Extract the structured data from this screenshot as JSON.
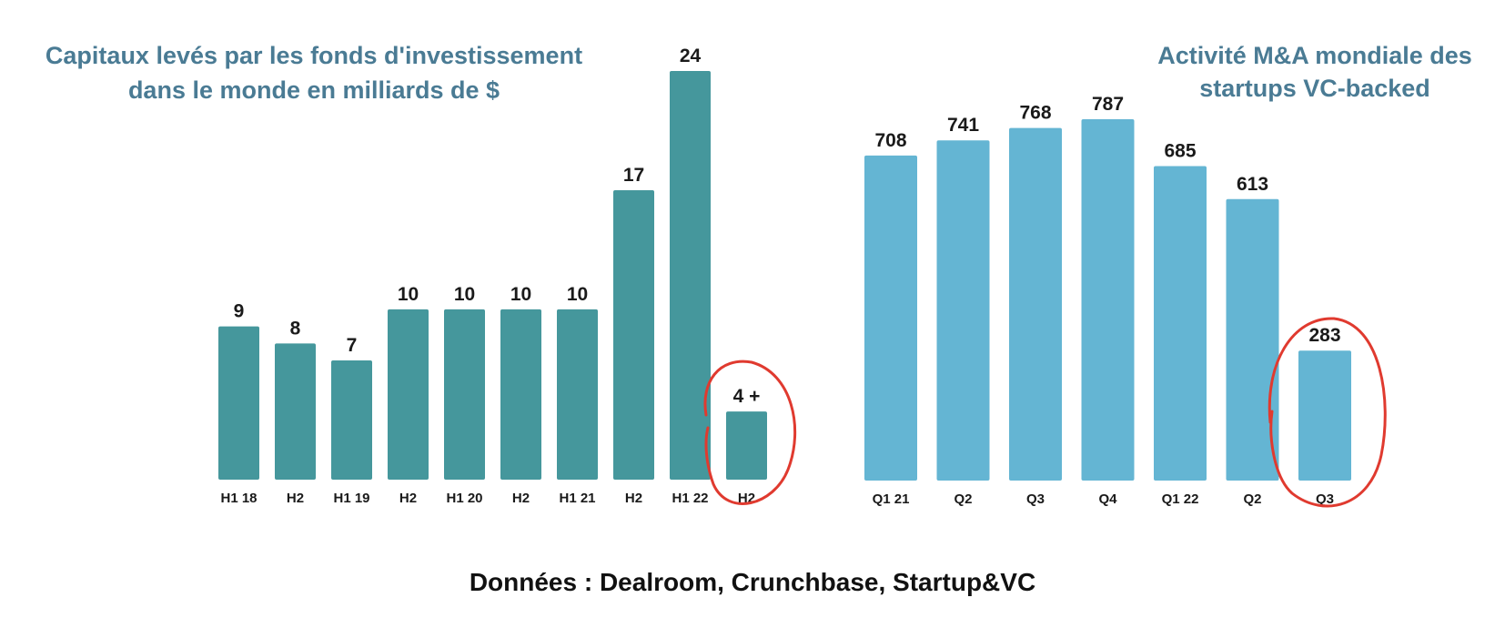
{
  "chart_data": [
    {
      "type": "bar",
      "title_lines": [
        "Capitaux levés par les fonds d'investissement",
        "dans le monde en milliards de $"
      ],
      "categories": [
        "H1 18",
        "H2",
        "H1 19",
        "H2",
        "H1 20",
        "H2",
        "H1 21",
        "H2",
        "H1 22",
        "H2"
      ],
      "values": [
        9,
        8,
        7,
        10,
        10,
        10,
        10,
        17,
        24,
        4
      ],
      "labels": [
        "9",
        "8",
        "7",
        "10",
        "10",
        "10",
        "10",
        "17",
        "24",
        "4 +"
      ],
      "ylim": [
        0,
        24
      ],
      "color": "#45979c",
      "highlight_index": 9,
      "highlight_color": "#e03a2f"
    },
    {
      "type": "bar",
      "title_lines": [
        "Activité M&A mondiale des",
        "startups VC-backed"
      ],
      "categories": [
        "Q1 21",
        "Q2",
        "Q3",
        "Q4",
        "Q1 22",
        "Q2",
        "Q3"
      ],
      "values": [
        708,
        741,
        768,
        787,
        685,
        613,
        283
      ],
      "labels": [
        "708",
        "741",
        "768",
        "787",
        "685",
        "613",
        "283"
      ],
      "ylim": [
        0,
        787
      ],
      "color": "#64b5d3",
      "highlight_index": 6,
      "highlight_color": "#e03a2f"
    }
  ],
  "source": "Données : Dealroom, Crunchbase, Startup&VC"
}
